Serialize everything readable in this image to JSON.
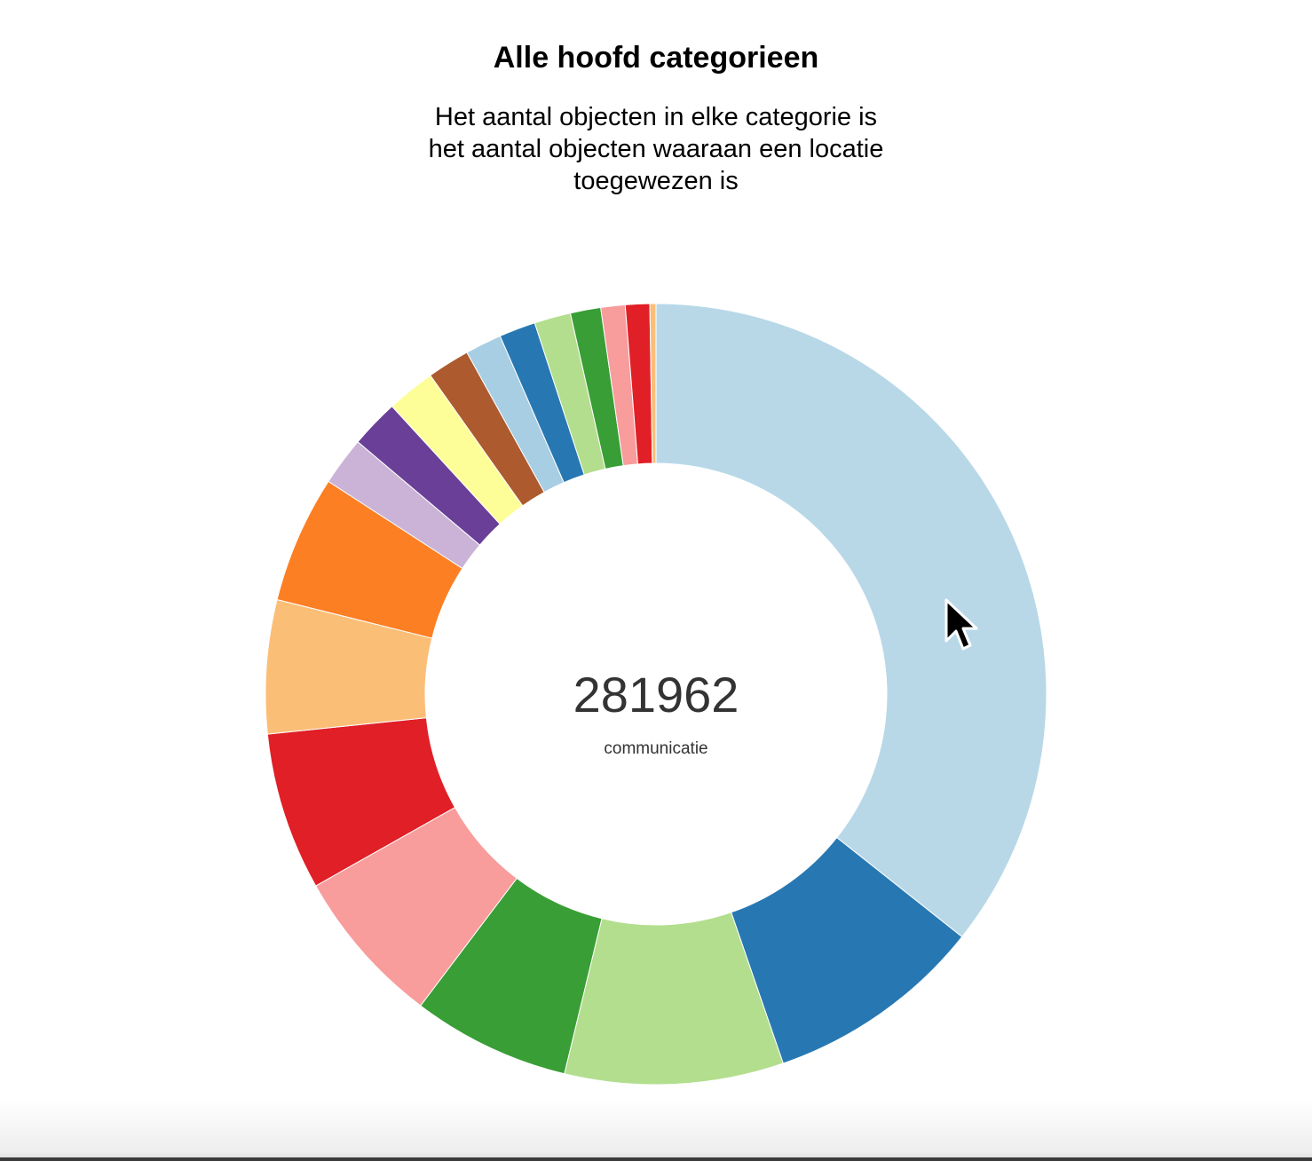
{
  "chart_data": {
    "type": "pie",
    "title": "Alle hoofd categorieen",
    "subtitle_lines": [
      "Het aantal objecten in elke categorie is",
      "het aantal objecten waaraan een locatie",
      "toegewezen is"
    ],
    "donut": true,
    "center_value": "281962",
    "center_label": "communicatie",
    "slices": [
      {
        "value": 281962,
        "color": "#b8d8e8"
      },
      {
        "value": 71520,
        "color": "#2778b2"
      },
      {
        "value": 71520,
        "color": "#b3de8e"
      },
      {
        "value": 51630,
        "color": "#399e35"
      },
      {
        "value": 51630,
        "color": "#f89c9c"
      },
      {
        "value": 51630,
        "color": "#e01f27"
      },
      {
        "value": 43680,
        "color": "#fbbe77"
      },
      {
        "value": 41690,
        "color": "#fd7f24"
      },
      {
        "value": 15890,
        "color": "#cab3d6"
      },
      {
        "value": 15890,
        "color": "#6a3f98"
      },
      {
        "value": 15890,
        "color": "#fefe99"
      },
      {
        "value": 13910,
        "color": "#ac5a2e"
      },
      {
        "value": 11920,
        "color": "#a8cee4"
      },
      {
        "value": 11920,
        "color": "#2778b2"
      },
      {
        "value": 11920,
        "color": "#b3de8e"
      },
      {
        "value": 9930,
        "color": "#399e35"
      },
      {
        "value": 7950,
        "color": "#f89c9c"
      },
      {
        "value": 7950,
        "color": "#e01f27"
      },
      {
        "value": 1990,
        "color": "#fbbe77"
      }
    ]
  },
  "cursor": {
    "icon": "mouse-pointer-icon"
  }
}
